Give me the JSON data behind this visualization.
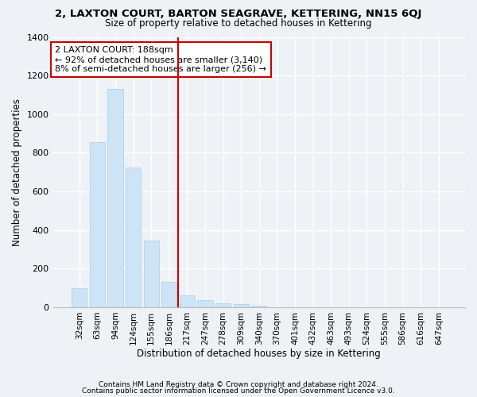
{
  "title": "2, LAXTON COURT, BARTON SEAGRAVE, KETTERING, NN15 6QJ",
  "subtitle": "Size of property relative to detached houses in Kettering",
  "xlabel": "Distribution of detached houses by size in Kettering",
  "ylabel": "Number of detached properties",
  "categories": [
    "32sqm",
    "63sqm",
    "94sqm",
    "124sqm",
    "155sqm",
    "186sqm",
    "217sqm",
    "247sqm",
    "278sqm",
    "309sqm",
    "340sqm",
    "370sqm",
    "401sqm",
    "432sqm",
    "463sqm",
    "493sqm",
    "524sqm",
    "555sqm",
    "586sqm",
    "616sqm",
    "647sqm"
  ],
  "values": [
    100,
    855,
    1130,
    725,
    345,
    130,
    60,
    35,
    20,
    18,
    10,
    0,
    0,
    0,
    0,
    0,
    0,
    0,
    0,
    0,
    0
  ],
  "bar_color": "#cce4f5",
  "bar_edge_color": "#a8cde8",
  "vline_x": 5.5,
  "vline_color": "#cc0000",
  "annotation_text": "2 LAXTON COURT: 188sqm\n← 92% of detached houses are smaller (3,140)\n8% of semi-detached houses are larger (256) →",
  "annotation_box_color": "#cc0000",
  "ylim": [
    0,
    1400
  ],
  "yticks": [
    0,
    200,
    400,
    600,
    800,
    1000,
    1200,
    1400
  ],
  "footnote1": "Contains HM Land Registry data © Crown copyright and database right 2024.",
  "footnote2": "Contains public sector information licensed under the Open Government Licence v3.0.",
  "background_color": "#eef2f7",
  "plot_background": "#eef2f7",
  "grid_color": "#ffffff"
}
